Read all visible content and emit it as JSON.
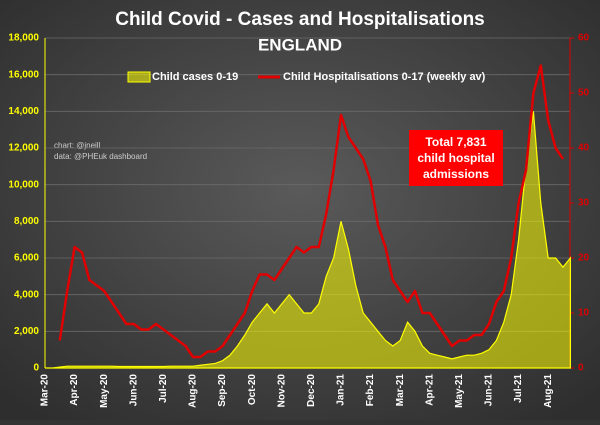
{
  "chart_data": {
    "type": "bar-line",
    "title": "Child Covid - Cases and Hospitalisations",
    "subtitle": "ENGLAND",
    "categories": [
      "Mar-20",
      null,
      null,
      null,
      "Apr-20",
      null,
      null,
      null,
      "May-20",
      null,
      null,
      null,
      "Jun-20",
      null,
      null,
      null,
      "Jul-20",
      null,
      null,
      null,
      "Aug-20",
      null,
      null,
      null,
      "Sep-20",
      null,
      null,
      null,
      "Oct-20",
      null,
      null,
      null,
      "Nov-20",
      null,
      null,
      null,
      "Dec-20",
      null,
      null,
      null,
      "Jan-21",
      null,
      null,
      null,
      "Feb-21",
      null,
      null,
      null,
      "Mar-21",
      null,
      null,
      null,
      "Apr-21",
      null,
      null,
      null,
      "May-21",
      null,
      null,
      null,
      "Jun-21",
      null,
      null,
      null,
      "Jul-21",
      null,
      null,
      null,
      "Aug-21",
      null,
      null,
      null
    ],
    "series": [
      {
        "name": "Child cases 0-19",
        "color": "#ffff00",
        "kind": "area",
        "values": [
          0,
          0,
          50,
          100,
          100,
          100,
          100,
          100,
          100,
          100,
          80,
          80,
          80,
          80,
          80,
          80,
          80,
          100,
          100,
          100,
          100,
          150,
          200,
          250,
          400,
          700,
          1200,
          1800,
          2500,
          3000,
          3500,
          3000,
          3500,
          4000,
          3500,
          3000,
          3000,
          3500,
          5000,
          6000,
          8000,
          6500,
          4500,
          3000,
          2500,
          2000,
          1500,
          1200,
          1500,
          2500,
          2000,
          1200,
          800,
          700,
          600,
          500,
          600,
          700,
          700,
          800,
          1000,
          1500,
          2500,
          4000,
          7000,
          11000,
          14000,
          9000,
          6000,
          6000,
          5500,
          6000
        ]
      },
      {
        "name": "Child Hospitalisations 0-17 (weekly av)",
        "color": "#e00000",
        "kind": "line",
        "axis": "y2",
        "values": [
          null,
          null,
          5,
          14,
          22,
          21,
          16,
          15,
          14,
          12,
          10,
          8,
          8,
          7,
          7,
          8,
          7,
          6,
          5,
          4,
          2,
          2,
          3,
          3,
          4,
          6,
          8,
          10,
          14,
          17,
          17,
          16,
          18,
          20,
          22,
          21,
          22,
          22,
          28,
          36,
          46,
          42,
          40,
          38,
          34,
          26,
          22,
          16,
          14,
          12,
          14,
          10,
          10,
          8,
          6,
          4,
          5,
          5,
          6,
          6,
          8,
          12,
          14,
          20,
          30,
          36,
          50,
          55,
          45,
          40,
          38,
          null
        ]
      }
    ],
    "ylim": [
      0,
      18000
    ],
    "yticks": [
      0,
      {
        "value": 2000,
        "label": "2,000"
      },
      {
        "value": 4000,
        "label": "4,000"
      },
      {
        "value": 6000,
        "label": "6,000"
      },
      {
        "value": 8000,
        "label": "8,000"
      },
      {
        "value": 10000,
        "label": "10,000"
      },
      {
        "value": 12000,
        "label": "12,000"
      },
      {
        "value": 14000,
        "label": "14,000"
      },
      {
        "value": 16000,
        "label": "16,000"
      },
      {
        "value": 18000,
        "label": "18,000"
      }
    ],
    "y2lim": [
      0,
      60
    ],
    "y2ticks": [
      0,
      10,
      20,
      30,
      40,
      50,
      60
    ],
    "grid": true,
    "annotations": [
      "chart: @jneill",
      "data: @PHEuk dashboard"
    ],
    "callout": [
      "Total 7,831",
      "child hospital",
      "admissions"
    ]
  }
}
